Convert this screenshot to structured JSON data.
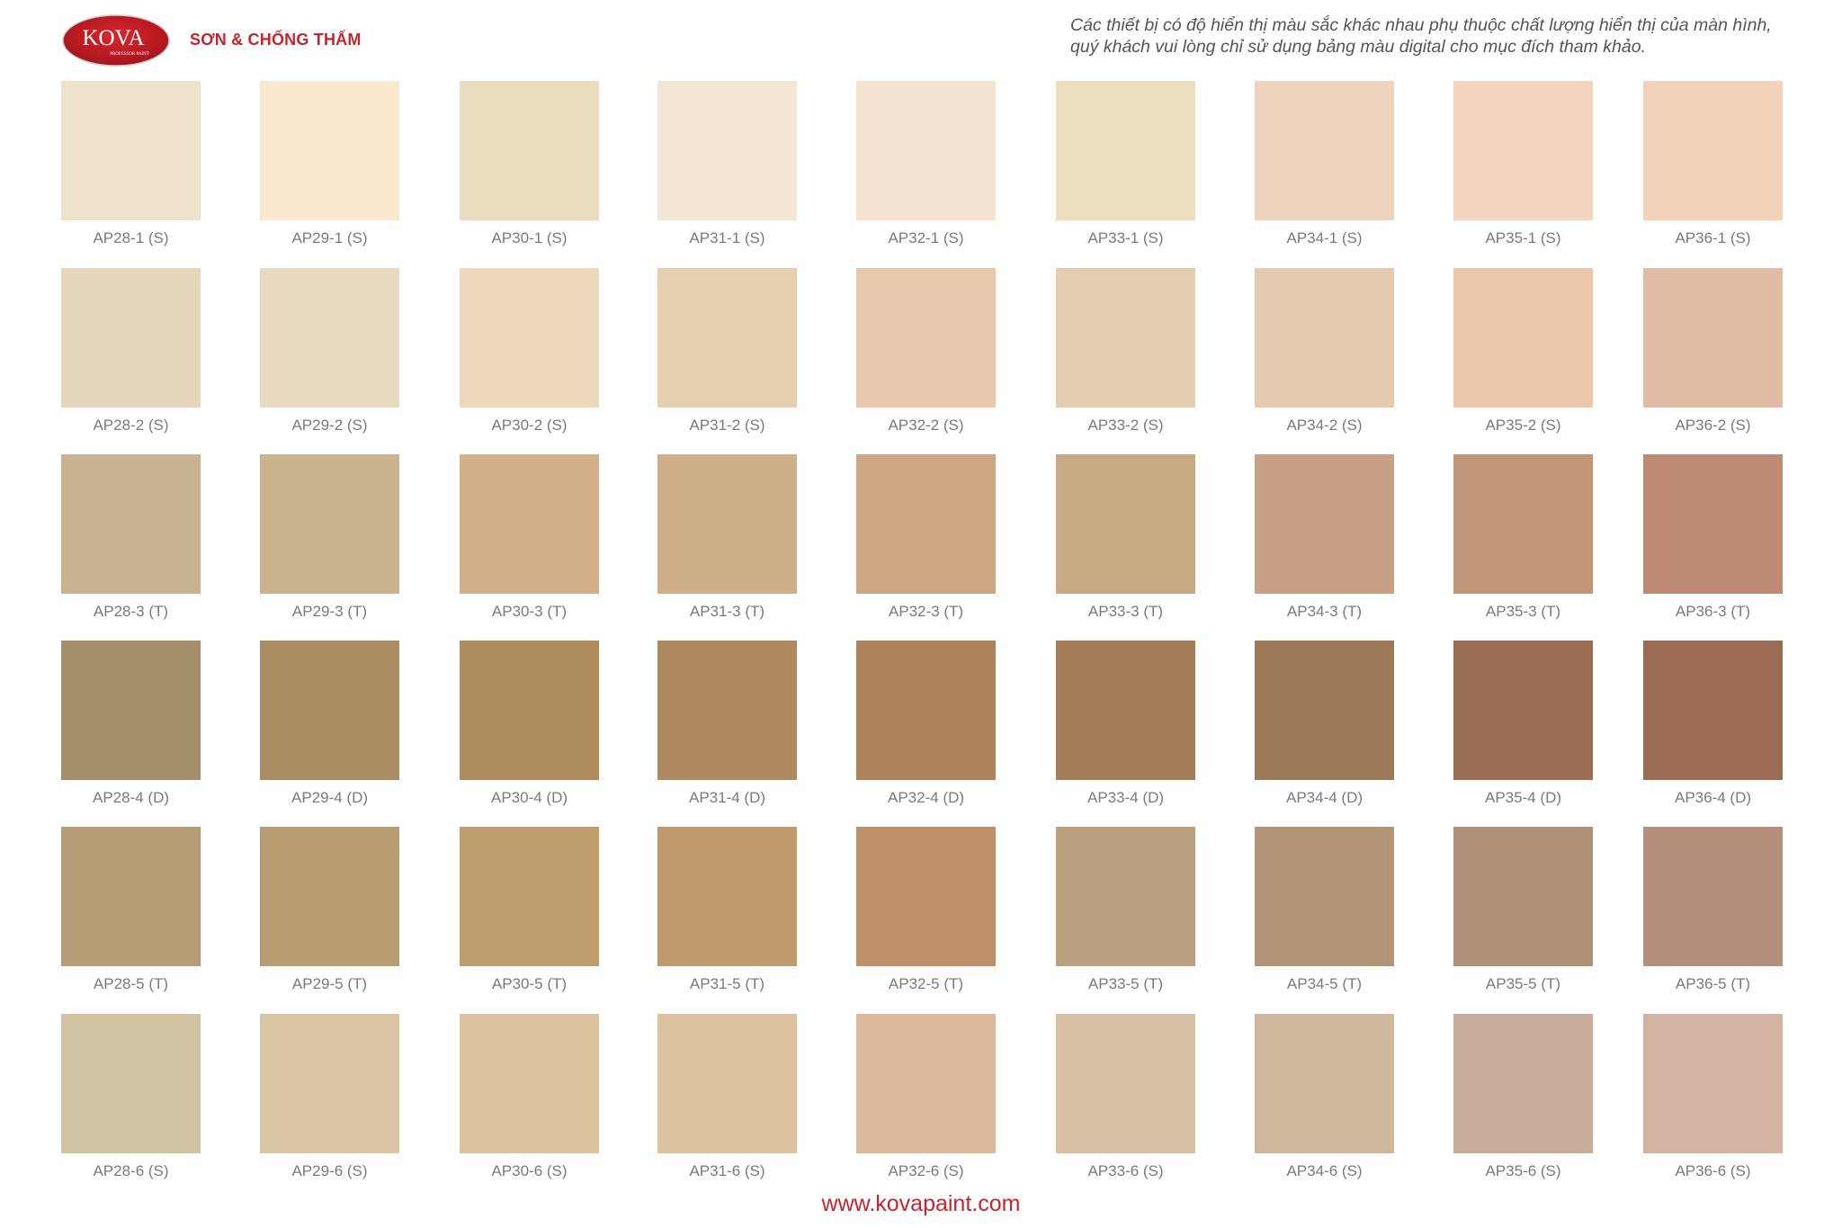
{
  "header": {
    "logo_text": "KOVA",
    "logo_subtext": "PROFESSOR PAINT",
    "tagline": "SƠN & CHỐNG THẤM",
    "disclaimer": "Các thiết bị có độ hiển thị màu sắc khác nhau phụ thuộc chất lượng hiển thị của màn hình, quý khách vui lòng chỉ sử dụng bảng màu digital cho mục đích tham khảo."
  },
  "colors": {
    "brand": "#c8242c"
  },
  "rows": [
    [
      {
        "code": "AP28-1 (S)",
        "color": "#ede3cb"
      },
      {
        "code": "AP29-1 (S)",
        "color": "#fae9cf"
      },
      {
        "code": "AP30-1 (S)",
        "color": "#ebdcc0"
      },
      {
        "code": "AP31-1 (S)",
        "color": "#f4e6d4"
      },
      {
        "code": "AP32-1 (S)",
        "color": "#f4e3cf"
      },
      {
        "code": "AP33-1 (S)",
        "color": "#ecdcc0"
      },
      {
        "code": "AP34-1 (S)",
        "color": "#eed4bc"
      },
      {
        "code": "AP35-1 (S)",
        "color": "#f4d6c0"
      },
      {
        "code": "AP36-1 (S)",
        "color": "#f4d3bb"
      }
    ],
    [
      {
        "code": "AP28-2 (S)",
        "color": "#e6d6bb"
      },
      {
        "code": "AP29-2 (S)",
        "color": "#e8dac0"
      },
      {
        "code": "AP30-2 (S)",
        "color": "#ecd8ba"
      },
      {
        "code": "AP31-2 (S)",
        "color": "#e6cfae"
      },
      {
        "code": "AP32-2 (S)",
        "color": "#e8c8ad"
      },
      {
        "code": "AP33-2 (S)",
        "color": "#e2cdb0"
      },
      {
        "code": "AP34-2 (S)",
        "color": "#e6cab0"
      },
      {
        "code": "AP35-2 (S)",
        "color": "#ecc6a8"
      },
      {
        "code": "AP36-2 (S)",
        "color": "#e2bba6"
      }
    ],
    [
      {
        "code": "AP28-3 (T)",
        "color": "#c9b391"
      },
      {
        "code": "AP29-3 (T)",
        "color": "#cab38f"
      },
      {
        "code": "AP30-3 (T)",
        "color": "#d1b08a"
      },
      {
        "code": "AP31-3 (T)",
        "color": "#ceaf89"
      },
      {
        "code": "AP32-3 (T)",
        "color": "#cda783"
      },
      {
        "code": "AP33-3 (T)",
        "color": "#c7aa84"
      },
      {
        "code": "AP34-3 (T)",
        "color": "#c8a083"
      },
      {
        "code": "AP35-3 (T)",
        "color": "#c09676"
      },
      {
        "code": "AP36-3 (T)",
        "color": "#bf8a74"
      }
    ],
    [
      {
        "code": "AP28-4 (D)",
        "color": "#a38e69"
      },
      {
        "code": "AP29-4 (D)",
        "color": "#aa8c62"
      },
      {
        "code": "AP30-4 (D)",
        "color": "#ae8c5e"
      },
      {
        "code": "AP31-4 (D)",
        "color": "#ae885e"
      },
      {
        "code": "AP32-4 (D)",
        "color": "#ad835b"
      },
      {
        "code": "AP33-4 (D)",
        "color": "#a37d58"
      },
      {
        "code": "AP34-4 (D)",
        "color": "#9c7957"
      },
      {
        "code": "AP35-4 (D)",
        "color": "#986d51"
      },
      {
        "code": "AP36-4 (D)",
        "color": "#9b6b52"
      }
    ],
    [
      {
        "code": "AP28-5 (T)",
        "color": "#b69c75"
      },
      {
        "code": "AP29-5 (T)",
        "color": "#b89c71"
      },
      {
        "code": "AP30-5 (T)",
        "color": "#bf9e6e"
      },
      {
        "code": "AP31-5 (T)",
        "color": "#c09a6c"
      },
      {
        "code": "AP32-5 (T)",
        "color": "#bf9168"
      },
      {
        "code": "AP33-5 (T)",
        "color": "#bba080"
      },
      {
        "code": "AP34-5 (T)",
        "color": "#b29577"
      },
      {
        "code": "AP35-5 (T)",
        "color": "#ae9077"
      },
      {
        "code": "AP36-5 (T)",
        "color": "#b48f7b"
      }
    ],
    [
      {
        "code": "AP28-6 (S)",
        "color": "#d1c2a2"
      },
      {
        "code": "AP29-6 (S)",
        "color": "#dac6a5"
      },
      {
        "code": "AP30-6 (S)",
        "color": "#dcc39e"
      },
      {
        "code": "AP31-6 (S)",
        "color": "#dcc29f"
      },
      {
        "code": "AP32-6 (S)",
        "color": "#dcb89b"
      },
      {
        "code": "AP33-6 (S)",
        "color": "#d6bfa2"
      },
      {
        "code": "AP34-6 (S)",
        "color": "#cdb89c"
      },
      {
        "code": "AP35-6 (S)",
        "color": "#c9ad9b"
      },
      {
        "code": "AP36-6 (S)",
        "color": "#d2b2a1"
      }
    ]
  ],
  "footer": {
    "website": "www.kovapaint.com"
  }
}
